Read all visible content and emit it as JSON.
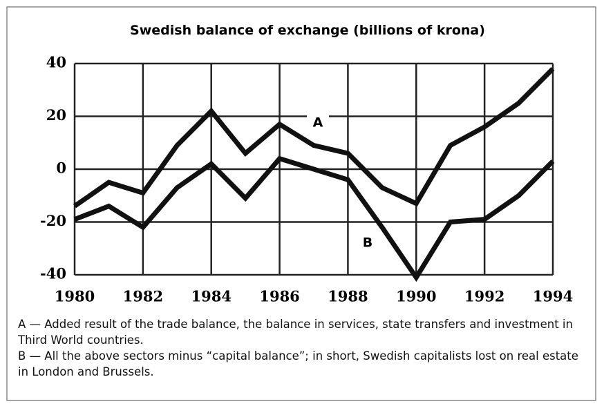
{
  "chart_data": {
    "type": "line",
    "title": "Swedish balance of exchange (billions of krona)",
    "x": [
      1980,
      1981,
      1982,
      1983,
      1984,
      1985,
      1986,
      1987,
      1988,
      1989,
      1990,
      1991,
      1992,
      1993,
      1994
    ],
    "xlim": [
      1980,
      1994
    ],
    "xticks": [
      1980,
      1982,
      1984,
      1986,
      1988,
      1990,
      1992,
      1994
    ],
    "ylim": [
      -40,
      40
    ],
    "yticks": [
      -40,
      -20,
      0,
      20,
      40
    ],
    "grid": true,
    "series": [
      {
        "name": "A",
        "color": "#111111",
        "values": [
          -14,
          -5,
          -9,
          9,
          22,
          6,
          17,
          9,
          6,
          -7,
          -13,
          9,
          16,
          25,
          38
        ]
      },
      {
        "name": "B",
        "color": "#111111",
        "values": [
          -19,
          -14,
          -22,
          -7,
          2,
          -11,
          4,
          0,
          -4,
          -22,
          -41,
          -20,
          -19,
          -10,
          3
        ]
      }
    ],
    "notes": [
      "A — Added result of the trade balance, the balance in services, state transfers and investment in Third World countries.",
      "B — All the above sectors minus “capital balance”; in short, Swedish capitalists lost on real estate in London and Brussels."
    ]
  }
}
